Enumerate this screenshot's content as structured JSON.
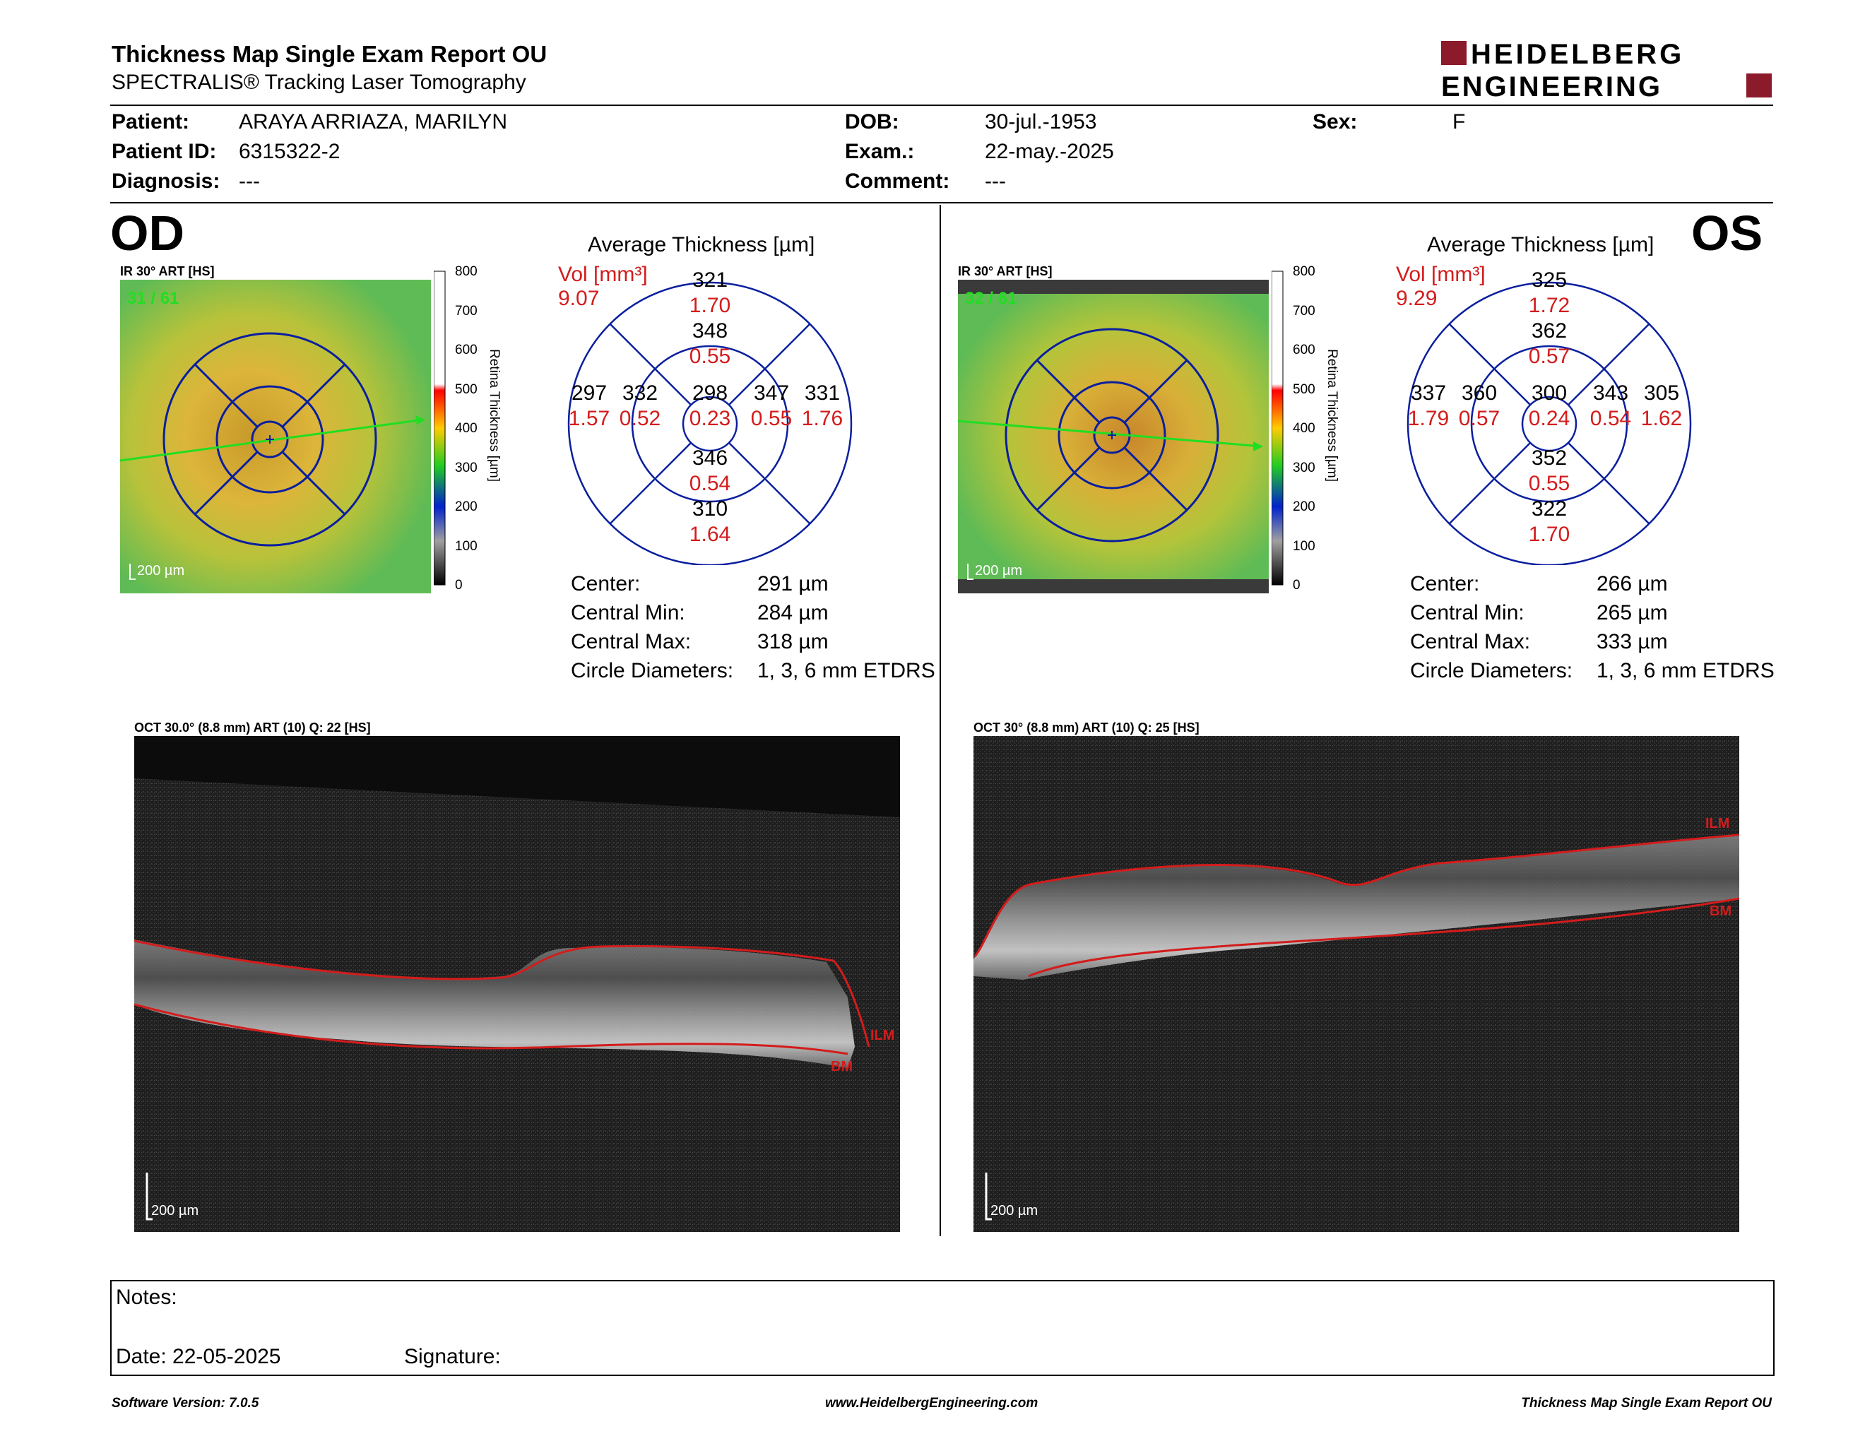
{
  "header": {
    "title": "Thickness Map Single Exam Report OU",
    "subtitle": "SPECTRALIS® Tracking Laser Tomography",
    "logo_line1": "HEIDELBERG",
    "logo_line2": "ENGINEERING",
    "brand_color": "#8b1a2b"
  },
  "patient": {
    "patient_label": "Patient:",
    "patient_value": "ARAYA ARRIAZA, MARILYN",
    "id_label": "Patient ID:",
    "id_value": "6315322-2",
    "diagnosis_label": "Diagnosis:",
    "diagnosis_value": "---",
    "dob_label": "DOB:",
    "dob_value": "30-jul.-1953",
    "exam_label": "Exam.:",
    "exam_value": "22-may.-2025",
    "comment_label": "Comment:",
    "comment_value": "---",
    "sex_label": "Sex:",
    "sex_value": "F"
  },
  "scale": {
    "ticks": [
      "800",
      "700",
      "600",
      "500",
      "400",
      "300",
      "200",
      "100",
      "0"
    ],
    "axis_label": "Retina Thickness [µm]"
  },
  "od": {
    "eye": "OD",
    "ir_label": "IR 30° ART [HS]",
    "frame": "31 / 61",
    "scale_bar": "200 µm",
    "avg_title": "Average Thickness [µm]",
    "vol_label": "Vol [mm³]",
    "vol_value": "9.07",
    "grid": {
      "center_t": "298",
      "center_v": "0.23",
      "inner_sup_t": "348",
      "inner_sup_v": "0.55",
      "inner_inf_t": "346",
      "inner_inf_v": "0.54",
      "inner_left_t": "332",
      "inner_left_v": "0.52",
      "inner_right_t": "347",
      "inner_right_v": "0.55",
      "outer_sup_t": "321",
      "outer_sup_v": "1.70",
      "outer_inf_t": "310",
      "outer_inf_v": "1.64",
      "outer_left_t": "297",
      "outer_left_v": "1.57",
      "outer_right_t": "331",
      "outer_right_v": "1.76"
    },
    "stats": {
      "center_label": "Center:",
      "center_value": "291 µm",
      "min_label": "Central Min:",
      "min_value": "284 µm",
      "max_label": "Central Max:",
      "max_value": "318 µm",
      "diam_label": "Circle Diameters:",
      "diam_value": "1, 3, 6 mm ETDRS"
    },
    "oct_label": "OCT 30.0° (8.8 mm) ART (10) Q: 22 [HS]",
    "oct_scale": "200 µm",
    "ilm": "ILM",
    "bm": "BM"
  },
  "os": {
    "eye": "OS",
    "ir_label": "IR 30° ART [HS]",
    "frame": "32 / 61",
    "scale_bar": "200 µm",
    "avg_title": "Average Thickness [µm]",
    "vol_label": "Vol [mm³]",
    "vol_value": "9.29",
    "grid": {
      "center_t": "300",
      "center_v": "0.24",
      "inner_sup_t": "362",
      "inner_sup_v": "0.57",
      "inner_inf_t": "352",
      "inner_inf_v": "0.55",
      "inner_left_t": "360",
      "inner_left_v": "0.57",
      "inner_right_t": "343",
      "inner_right_v": "0.54",
      "outer_sup_t": "325",
      "outer_sup_v": "1.72",
      "outer_inf_t": "322",
      "outer_inf_v": "1.70",
      "outer_left_t": "337",
      "outer_left_v": "1.79",
      "outer_right_t": "305",
      "outer_right_v": "1.62"
    },
    "stats": {
      "center_label": "Center:",
      "center_value": "266 µm",
      "min_label": "Central Min:",
      "min_value": "265 µm",
      "max_label": "Central Max:",
      "max_value": "333 µm",
      "diam_label": "Circle Diameters:",
      "diam_value": "1, 3, 6 mm ETDRS"
    },
    "oct_label": "OCT 30° (8.8 mm) ART (10) Q: 25 [HS]",
    "oct_scale": "200 µm",
    "ilm": "ILM",
    "bm": "BM"
  },
  "notes": {
    "notes_label": "Notes:",
    "date_label": "Date: 22-05-2025",
    "signature_label": "Signature:"
  },
  "footer": {
    "left": "Software Version: 7.0.5",
    "center": "www.HeidelbergEngineering.com",
    "right": "Thickness Map Single Exam Report OU"
  }
}
